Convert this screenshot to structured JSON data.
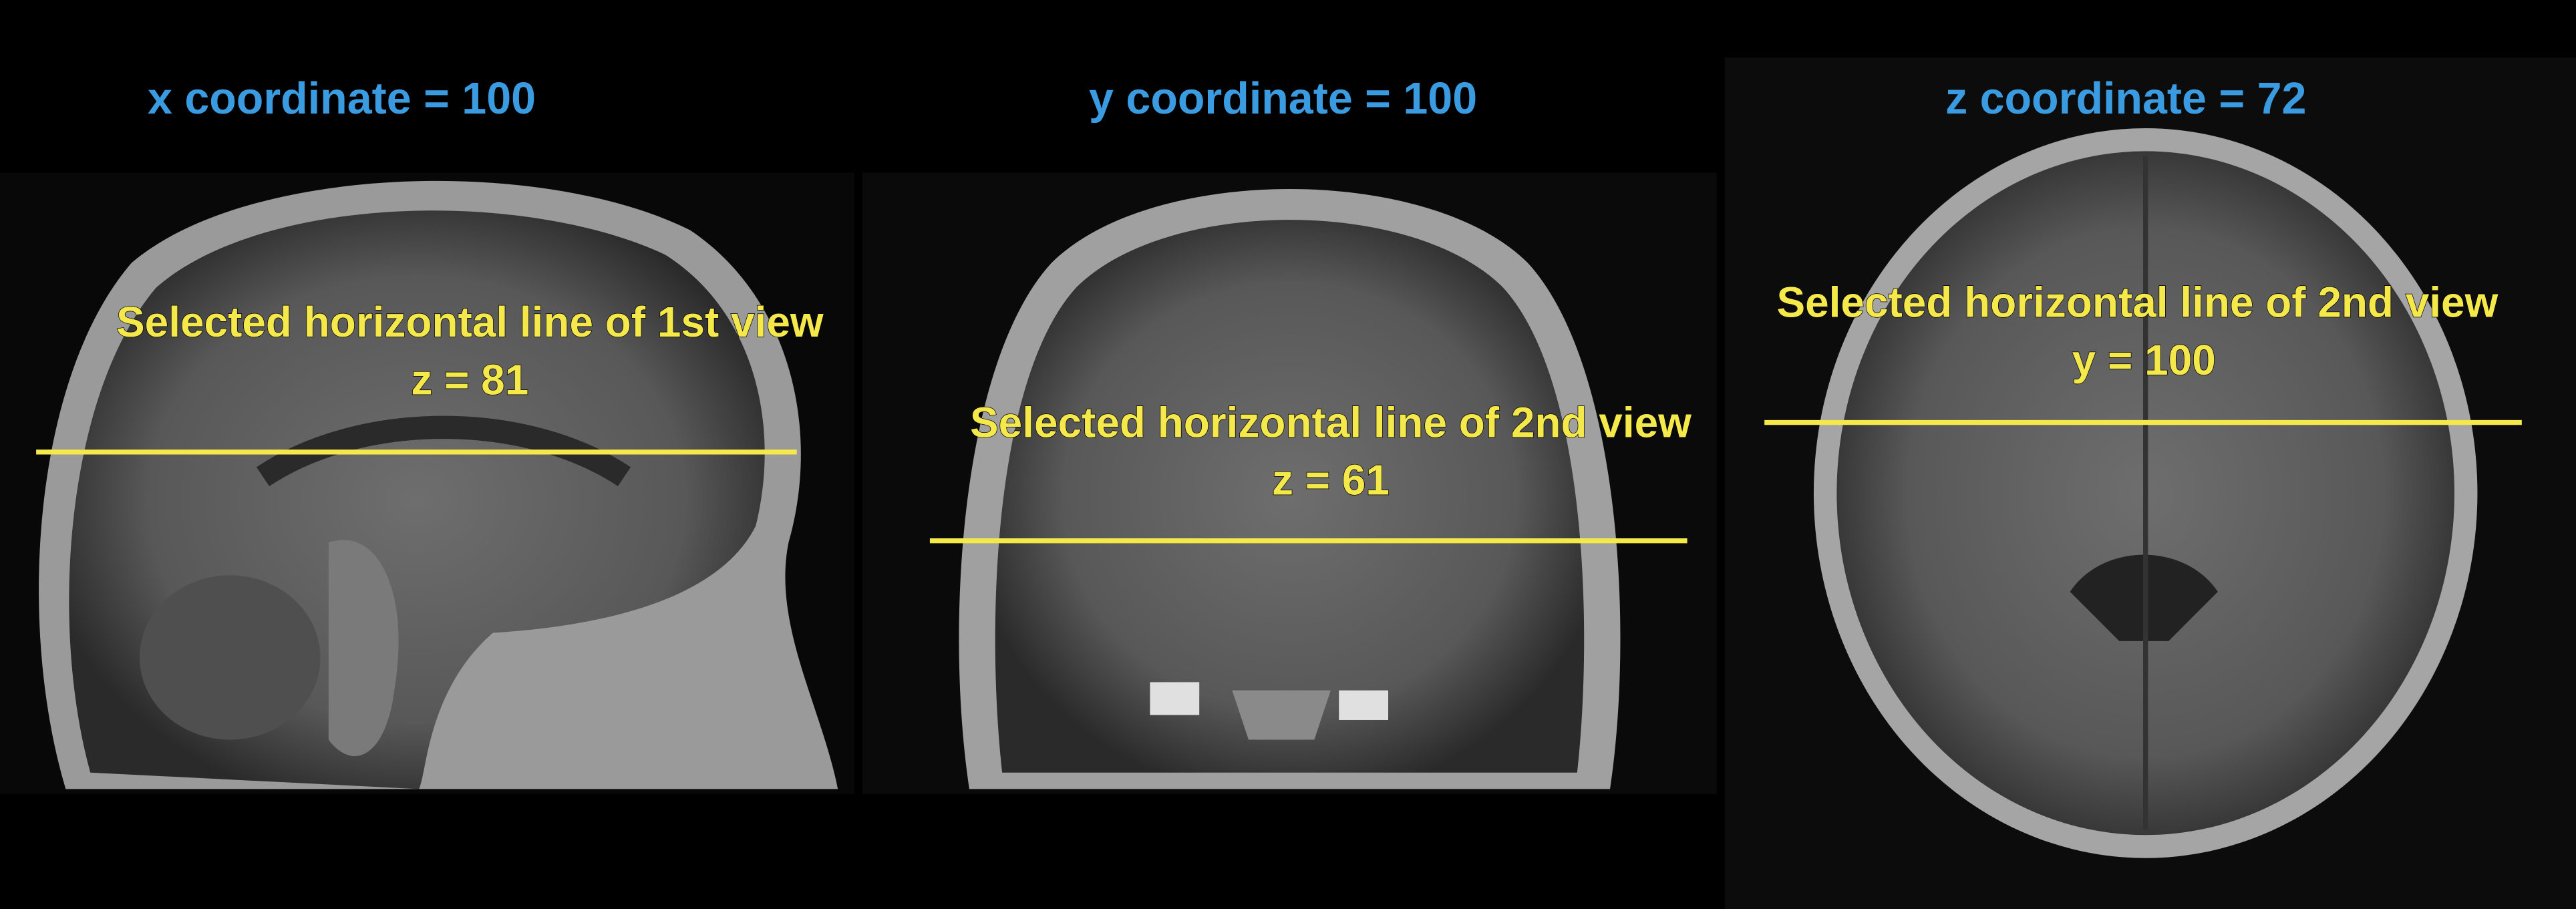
{
  "panels": [
    {
      "title": "x coordinate = 100",
      "annotation": [
        "Selected horizontal line of 1st view",
        "z = 81"
      ]
    },
    {
      "title": "y coordinate = 100",
      "annotation": [
        "Selected horizontal line of 2nd view",
        "z = 61"
      ]
    },
    {
      "title": "z coordinate = 72",
      "annotation": [
        "Selected horizontal line of 2nd view",
        "y = 100"
      ]
    }
  ]
}
